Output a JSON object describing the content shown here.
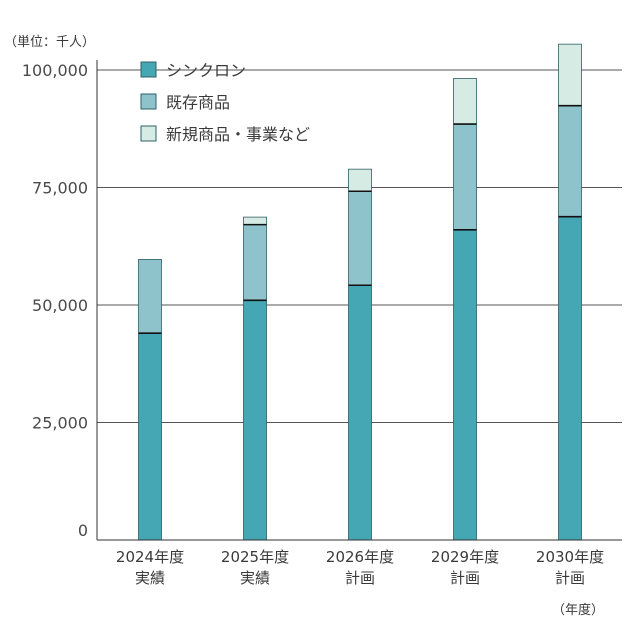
{
  "chart_data": {
    "type": "bar",
    "stacked": true,
    "unit_label": "（単位：千人）",
    "x_unit_label": "（年度）",
    "categories": [
      [
        "2024年度",
        "実績"
      ],
      [
        "2025年度",
        "実績"
      ],
      [
        "2026年度",
        "計画"
      ],
      [
        "2029年度",
        "計画"
      ],
      [
        "2030年度",
        "計画"
      ]
    ],
    "series": [
      {
        "name": "シンクロン",
        "color": "#46a7b4",
        "values": [
          44000,
          51000,
          54200,
          66000,
          68800
        ]
      },
      {
        "name": "既存商品",
        "color": "#8ec3cc",
        "values": [
          15700,
          16100,
          20000,
          22500,
          23600
        ]
      },
      {
        "name": "新規商品・事業など",
        "color": "#d6ebe4",
        "values": [
          0,
          1600,
          4700,
          9700,
          13100
        ]
      }
    ],
    "ylim": [
      0,
      100000
    ],
    "yticks": [
      0,
      25000,
      50000,
      75000,
      100000
    ],
    "ytick_labels": [
      "0",
      "25,000",
      "50,000",
      "75,000",
      "100,000"
    ],
    "grid": true,
    "legend_position": "top-left"
  }
}
